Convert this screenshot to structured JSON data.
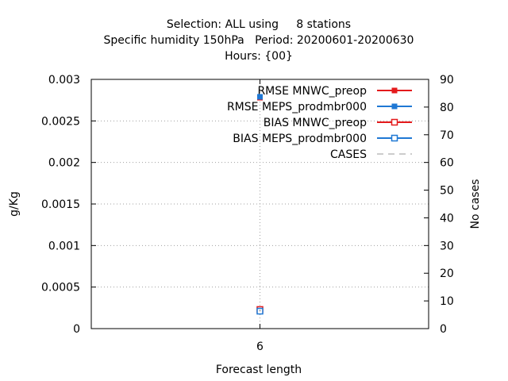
{
  "chart_data": {
    "type": "line",
    "title_lines": [
      "Selection: ALL using     8 stations",
      "Specific humidity 150hPa   Period: 20200601-20200630",
      "Hours: {00}"
    ],
    "xlabel": "Forecast length",
    "ylabel": "g/Kg",
    "y2label": "No cases",
    "x_ticks": [
      "6"
    ],
    "xlim": [
      5.75,
      6.25
    ],
    "ylim": [
      0,
      0.003
    ],
    "y_ticks": [
      "0",
      "0.0005",
      "0.001",
      "0.0015",
      "0.002",
      "0.0025",
      "0.003"
    ],
    "y2lim": [
      0,
      90
    ],
    "y2_ticks": [
      "0",
      "10",
      "20",
      "30",
      "40",
      "50",
      "60",
      "70",
      "80",
      "90"
    ],
    "grid": true,
    "legend_position": "top-right",
    "series": [
      {
        "name": "RMSE MNWC_preop",
        "color": "#e41a1c",
        "marker": "filled-square",
        "axis": "y",
        "x": [
          6
        ],
        "y": [
          0.00278
        ]
      },
      {
        "name": "RMSE MEPS_prodmbr000",
        "color": "#1f78d4",
        "marker": "filled-square",
        "axis": "y",
        "x": [
          6
        ],
        "y": [
          0.00279
        ]
      },
      {
        "name": "BIAS MNWC_preop",
        "color": "#e41a1c",
        "marker": "open-square",
        "axis": "y",
        "x": [
          6
        ],
        "y": [
          0.00023
        ]
      },
      {
        "name": "BIAS MEPS_prodmbr000",
        "color": "#1f78d4",
        "marker": "open-square",
        "axis": "y",
        "x": [
          6
        ],
        "y": [
          0.00021
        ]
      },
      {
        "name": "CASES",
        "color": "#999999",
        "marker": "dashed-line",
        "axis": "y2",
        "x": [
          6
        ],
        "y": [
          6.5
        ]
      }
    ]
  }
}
